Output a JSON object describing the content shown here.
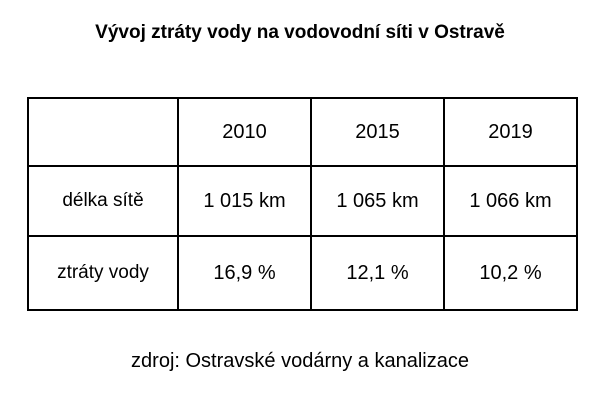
{
  "header": {
    "title": "Vývoj ztráty vody na vodovodní síti v Ostravě"
  },
  "table": {
    "columns": [
      "2010",
      "2015",
      "2019"
    ],
    "rows": [
      {
        "label": "délka sítě",
        "cells": [
          "1 015 km",
          "1 065 km",
          "1 066 km"
        ]
      },
      {
        "label": "ztráty vody",
        "cells": [
          "16,9 %",
          "12,1 %",
          "10,2 %"
        ]
      }
    ]
  },
  "source": "zdroj: Ostravské vodárny a kanalizace"
}
